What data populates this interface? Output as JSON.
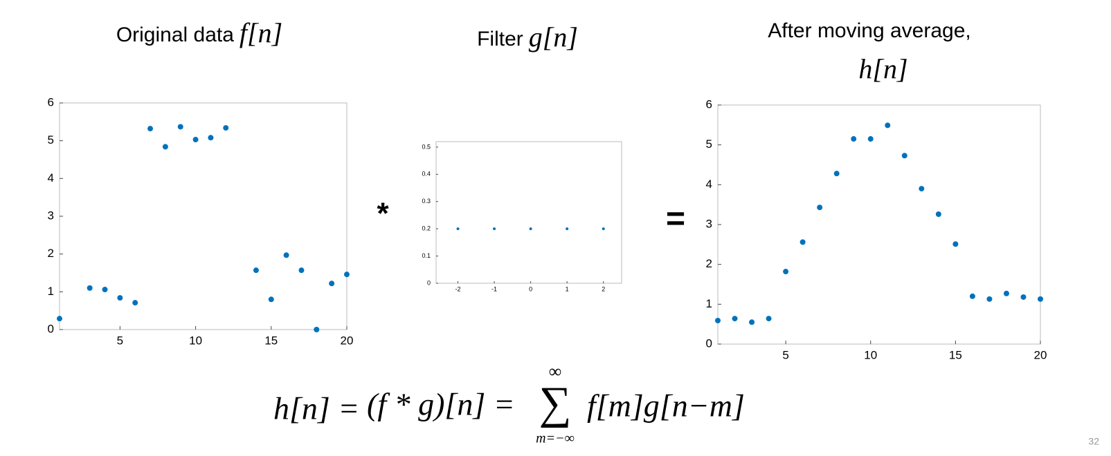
{
  "chart_data": [
    {
      "type": "scatter",
      "title": "Original data",
      "title_symbol": "f[n]",
      "color": "#0072bd",
      "x": [
        1,
        3,
        4,
        5,
        6,
        7,
        8,
        9,
        10,
        11,
        12,
        14,
        15,
        16,
        17,
        18,
        19,
        20
      ],
      "values": [
        0.29,
        1.1,
        1.06,
        0.84,
        0.71,
        5.32,
        4.84,
        5.37,
        5.03,
        5.08,
        5.34,
        1.57,
        0.8,
        1.97,
        1.57,
        0,
        1.22,
        1.46
      ],
      "xlim": [
        1,
        20
      ],
      "ylim": [
        0,
        6
      ],
      "xticks": [
        5,
        10,
        15,
        20
      ],
      "yticks": [
        0,
        1,
        2,
        3,
        4,
        5,
        6
      ]
    },
    {
      "type": "scatter",
      "title": "Filter",
      "title_symbol": "g[n]",
      "color": "#0072bd",
      "x": [
        -2,
        -1,
        0,
        1,
        2
      ],
      "values": [
        0.2,
        0.2,
        0.2,
        0.2,
        0.2
      ],
      "xlim": [
        -2.6,
        2.5
      ],
      "ylim": [
        0,
        0.52
      ],
      "xticks": [
        -2,
        -1,
        0,
        1,
        2
      ],
      "yticks": [
        0,
        0.1,
        0.2,
        0.3,
        0.4,
        0.5
      ]
    },
    {
      "type": "scatter",
      "title": "After moving average,",
      "title_symbol": "h[n]",
      "color": "#0072bd",
      "x": [
        1,
        2,
        3,
        4,
        5,
        6,
        7,
        8,
        9,
        10,
        11,
        12,
        13,
        14,
        15,
        16,
        17,
        18,
        19,
        20
      ],
      "values": [
        0.59,
        0.64,
        0.55,
        0.64,
        1.82,
        2.56,
        3.43,
        4.28,
        5.15,
        5.15,
        5.49,
        4.73,
        3.9,
        3.26,
        2.51,
        1.2,
        1.13,
        1.27,
        1.18,
        1.13
      ],
      "xlim": [
        1,
        20
      ],
      "ylim": [
        0,
        6
      ],
      "xticks": [
        5,
        10,
        15,
        20
      ],
      "yticks": [
        0,
        1,
        2,
        3,
        4,
        5,
        6
      ]
    }
  ],
  "operators": [
    "*",
    "="
  ],
  "formula": {
    "lhs": "h[n] =",
    "conv": "(f * g)[n] =",
    "sum_top": "∞",
    "sum_sign": "∑",
    "sum_bottom": "m=−∞",
    "rhs": "f[m]g[n−m]"
  },
  "page_number": "32"
}
